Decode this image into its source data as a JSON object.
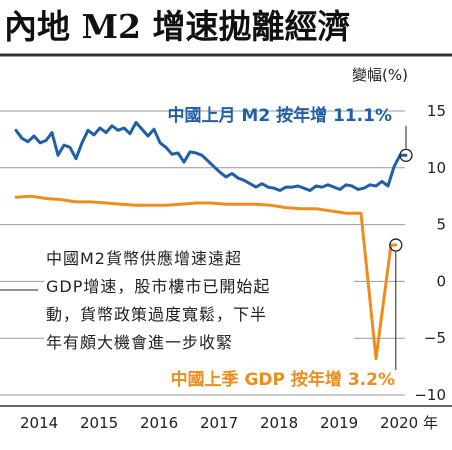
{
  "title": "內地 M2 增速拋離經濟",
  "unit_label": "變幅(%)",
  "annotation": {
    "lines": [
      "中國M2貨幣供應增速遠超",
      "GDP增速，股市樓市已開始起",
      "動，貨幣政策過度寬鬆，下半",
      "年有頗大機會進一步收緊"
    ]
  },
  "chart_data": {
    "type": "line",
    "title": "內地 M2 增速拋離經濟",
    "ylabel": "變幅(%)",
    "ylim": [
      -10,
      15
    ],
    "yticks": [
      15,
      10,
      5,
      0,
      -5,
      -10
    ],
    "ytick_labels": [
      "15",
      "10",
      "5",
      "0",
      "−5",
      "−10"
    ],
    "xlim": [
      2014.0,
      2021.0
    ],
    "xticks": [
      2014,
      2015,
      2016,
      2017,
      2018,
      2019,
      2020
    ],
    "xtick_labels": [
      "2014",
      "2015",
      "2016",
      "2017",
      "2018",
      "2019",
      "2020 年"
    ],
    "series": [
      {
        "key": "m2",
        "color": "#1f5fa8",
        "label": "中國上月 M2 按年增 11.1%",
        "x": [
          2014.0,
          2014.1,
          2014.2,
          2014.3,
          2014.4,
          2014.5,
          2014.6,
          2014.7,
          2014.8,
          2014.9,
          2015.0,
          2015.1,
          2015.2,
          2015.3,
          2015.4,
          2015.5,
          2015.6,
          2015.7,
          2015.8,
          2015.9,
          2016.0,
          2016.1,
          2016.2,
          2016.3,
          2016.4,
          2016.5,
          2016.6,
          2016.7,
          2016.8,
          2016.9,
          2017.0,
          2017.1,
          2017.2,
          2017.3,
          2017.4,
          2017.5,
          2017.6,
          2017.7,
          2017.8,
          2017.9,
          2018.0,
          2018.1,
          2018.2,
          2018.3,
          2018.4,
          2018.5,
          2018.6,
          2018.7,
          2018.8,
          2018.9,
          2019.0,
          2019.1,
          2019.2,
          2019.3,
          2019.4,
          2019.5,
          2019.6,
          2019.7,
          2019.8,
          2019.9,
          2020.0,
          2020.1,
          2020.2,
          2020.3,
          2020.4,
          2020.5
        ],
        "y": [
          13.3,
          12.6,
          12.3,
          12.8,
          12.2,
          12.4,
          13.1,
          11.1,
          12.0,
          11.8,
          10.8,
          12.2,
          13.3,
          12.9,
          13.5,
          13.1,
          13.7,
          13.3,
          13.5,
          13.0,
          14.0,
          13.4,
          12.8,
          13.4,
          12.2,
          11.8,
          11.2,
          11.3,
          10.5,
          11.4,
          11.3,
          11.1,
          10.6,
          10.1,
          9.6,
          9.2,
          9.5,
          9.1,
          8.9,
          8.6,
          8.3,
          8.6,
          8.3,
          8.2,
          8.0,
          8.3,
          8.3,
          8.4,
          8.2,
          8.0,
          8.4,
          8.3,
          8.5,
          8.3,
          8.1,
          8.5,
          8.4,
          8.1,
          8.2,
          8.5,
          8.4,
          8.8,
          8.4,
          10.1,
          11.1,
          11.1
        ]
      },
      {
        "key": "gdp",
        "color": "#ef8c1c",
        "label": "中國上季 GDP 按年增 3.2%",
        "x": [
          2014.0,
          2014.25,
          2014.5,
          2014.75,
          2015.0,
          2015.25,
          2015.5,
          2015.75,
          2016.0,
          2016.25,
          2016.5,
          2016.75,
          2017.0,
          2017.25,
          2017.5,
          2017.75,
          2018.0,
          2018.25,
          2018.5,
          2018.75,
          2019.0,
          2019.25,
          2019.5,
          2019.75,
          2020.0,
          2020.25,
          2020.33
        ],
        "y": [
          7.4,
          7.5,
          7.3,
          7.2,
          7.0,
          7.0,
          6.9,
          6.8,
          6.7,
          6.7,
          6.7,
          6.8,
          6.9,
          6.9,
          6.8,
          6.8,
          6.8,
          6.7,
          6.5,
          6.4,
          6.4,
          6.2,
          6.0,
          6.0,
          -6.8,
          3.2,
          3.2
        ]
      }
    ],
    "grid": true
  }
}
